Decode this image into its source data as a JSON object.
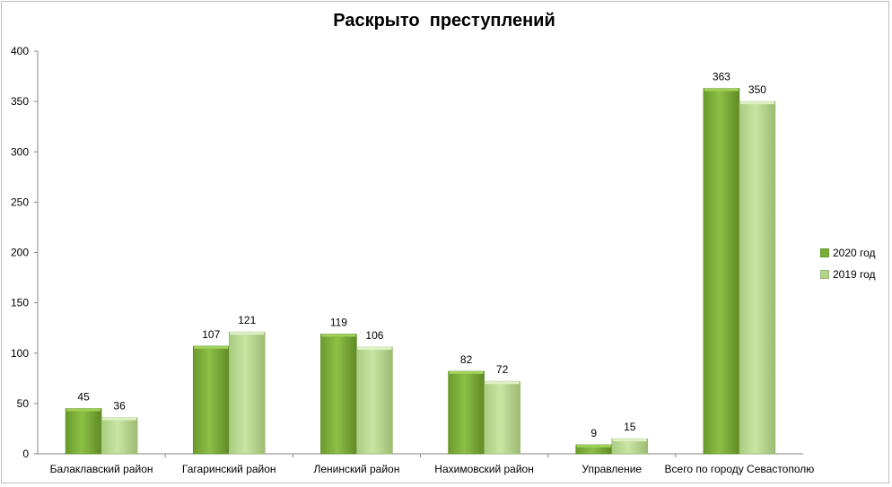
{
  "chart_data": {
    "type": "bar",
    "title": "Раскрыто  преступлений",
    "categories": [
      "Балаклавский район",
      "Гагаринский район",
      "Ленинский район",
      "Нахимовский район",
      "Управление",
      "Всего по городу Севастополю"
    ],
    "series": [
      {
        "name": "2020 год",
        "values": [
          45,
          107,
          119,
          82,
          9,
          363
        ],
        "color": "#7aae35"
      },
      {
        "name": "2019 год",
        "values": [
          36,
          121,
          106,
          72,
          15,
          350
        ],
        "color": "#b3d58a"
      }
    ],
    "yticks": [
      "0",
      "50",
      "100",
      "150",
      "200",
      "250",
      "300",
      "350",
      "400"
    ],
    "ylim": [
      0,
      400
    ],
    "grid": false,
    "legend_position": "right"
  }
}
